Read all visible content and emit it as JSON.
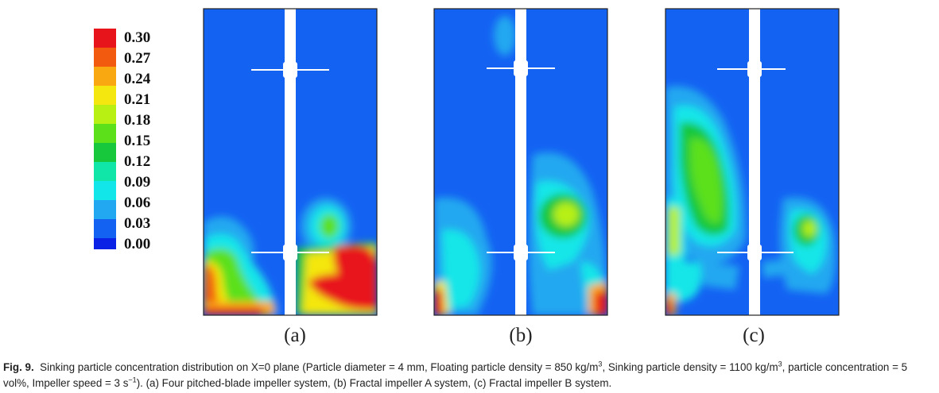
{
  "legend": {
    "labels": [
      "0.30",
      "0.27",
      "0.24",
      "0.21",
      "0.18",
      "0.15",
      "0.12",
      "0.09",
      "0.06",
      "0.03",
      "0.00"
    ],
    "colors": [
      "#e8141b",
      "#f25a10",
      "#f9a812",
      "#f4e710",
      "#b7f012",
      "#5ce01a",
      "#18c83c",
      "#10e6a8",
      "#12e6e8",
      "#22a8f0",
      "#1462f2",
      "#0a22e6"
    ]
  },
  "panels": [
    {
      "label": "(a)"
    },
    {
      "label": "(b)"
    },
    {
      "label": "(c)"
    }
  ],
  "caption": {
    "fig_label": "Fig. 9.",
    "text_1": "Sinking particle concentration distribution on X=0 plane (Particle diameter = 4 mm, Floating particle density = 850 kg/m",
    "sup_1": "3",
    "text_2": ", Sinking particle density = 1100 kg/m",
    "sup_2": "3",
    "text_3": ", particle concentration = 5 vol%, Impeller speed = 3 s",
    "sup_3": "−1",
    "text_4": "). (a) Four pitched-blade impeller system, (b) Fractal impeller A system, (c) Fractal impeller B system."
  }
}
